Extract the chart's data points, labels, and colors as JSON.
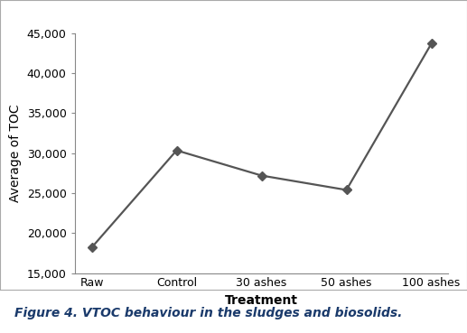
{
  "categories": [
    "Raw",
    "Control",
    "30 ashes",
    "50 ashes",
    "100 ashes"
  ],
  "values": [
    18200,
    30350,
    27200,
    25400,
    43700
  ],
  "xlabel": "Treatment",
  "ylabel": "Average of TOC",
  "ylim": [
    15000,
    45000
  ],
  "yticks": [
    15000,
    20000,
    25000,
    30000,
    35000,
    40000,
    45000
  ],
  "line_color": "#555555",
  "marker": "D",
  "marker_color": "#555555",
  "marker_size": 5,
  "linewidth": 1.6,
  "caption": "Figure 4. VTOC behaviour in the sludges and biosolids.",
  "bg_color": "#ffffff",
  "xlabel_fontsize": 10,
  "ylabel_fontsize": 10,
  "tick_fontsize": 9,
  "caption_fontsize": 10,
  "caption_color": "#1a3a6b",
  "border_color": "#aaaaaa"
}
